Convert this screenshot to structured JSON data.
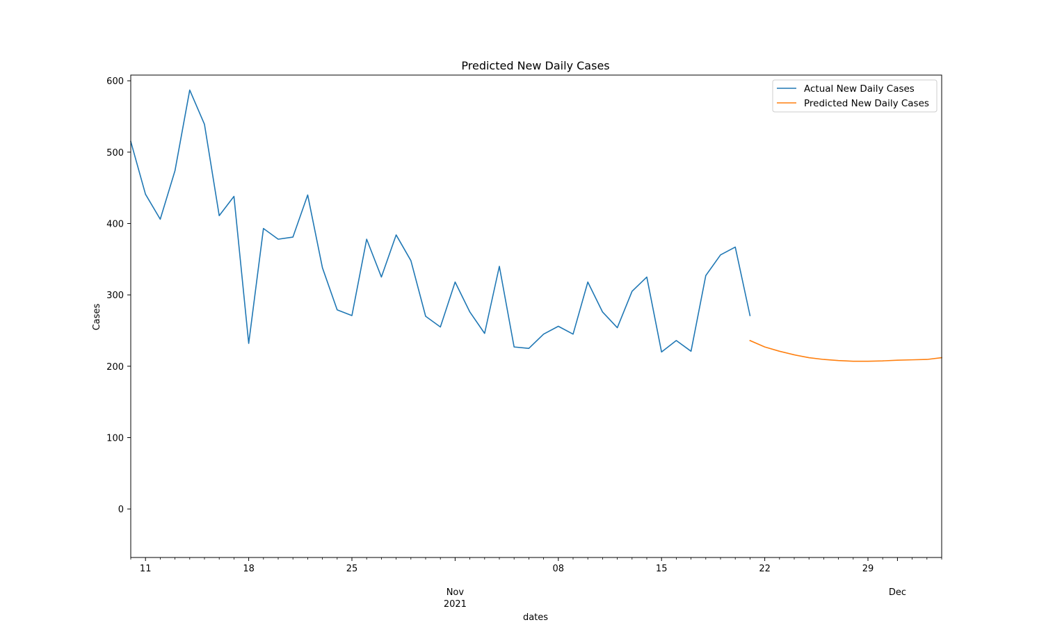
{
  "chart_data": {
    "type": "line",
    "title": "Predicted New Daily Cases",
    "xlabel": "dates",
    "ylabel": "Cases",
    "ylim": [
      -68,
      608
    ],
    "xlim": [
      "2021-10-10",
      "2021-12-04"
    ],
    "grid": false,
    "legend_position": "top-right",
    "y_ticks": [
      "0",
      "100",
      "200",
      "300",
      "400",
      "500",
      "600"
    ],
    "x_ticks": [
      {
        "date": "2021-10-11",
        "label": "11"
      },
      {
        "date": "2021-10-18",
        "label": "18"
      },
      {
        "date": "2021-10-25",
        "label": "25"
      },
      {
        "date": "2021-11-01",
        "label": "Nov\n2021"
      },
      {
        "date": "2021-11-08",
        "label": "08"
      },
      {
        "date": "2021-11-15",
        "label": "15"
      },
      {
        "date": "2021-11-22",
        "label": "22"
      },
      {
        "date": "2021-11-29",
        "label": "29"
      },
      {
        "date": "2021-12-01",
        "label": "Dec"
      }
    ],
    "series": [
      {
        "name": "Actual New Daily Cases",
        "color": "#1f77b4",
        "points": [
          [
            "2021-10-10",
            515
          ],
          [
            "2021-10-11",
            441
          ],
          [
            "2021-10-12",
            406
          ],
          [
            "2021-10-13",
            474
          ],
          [
            "2021-10-14",
            587
          ],
          [
            "2021-10-15",
            539
          ],
          [
            "2021-10-16",
            411
          ],
          [
            "2021-10-17",
            438
          ],
          [
            "2021-10-18",
            232
          ],
          [
            "2021-10-19",
            393
          ],
          [
            "2021-10-20",
            378
          ],
          [
            "2021-10-21",
            381
          ],
          [
            "2021-10-22",
            440
          ],
          [
            "2021-10-23",
            338
          ],
          [
            "2021-10-24",
            279
          ],
          [
            "2021-10-25",
            271
          ],
          [
            "2021-10-26",
            378
          ],
          [
            "2021-10-27",
            325
          ],
          [
            "2021-10-28",
            384
          ],
          [
            "2021-10-29",
            348
          ],
          [
            "2021-10-30",
            270
          ],
          [
            "2021-10-31",
            255
          ],
          [
            "2021-11-01",
            318
          ],
          [
            "2021-11-02",
            276
          ],
          [
            "2021-11-03",
            246
          ],
          [
            "2021-11-04",
            340
          ],
          [
            "2021-11-05",
            227
          ],
          [
            "2021-11-06",
            225
          ],
          [
            "2021-11-07",
            245
          ],
          [
            "2021-11-08",
            256
          ],
          [
            "2021-11-09",
            245
          ],
          [
            "2021-11-10",
            318
          ],
          [
            "2021-11-11",
            276
          ],
          [
            "2021-11-12",
            254
          ],
          [
            "2021-11-13",
            305
          ],
          [
            "2021-11-14",
            325
          ],
          [
            "2021-11-15",
            220
          ],
          [
            "2021-11-16",
            236
          ],
          [
            "2021-11-17",
            221
          ],
          [
            "2021-11-18",
            327
          ],
          [
            "2021-11-19",
            356
          ],
          [
            "2021-11-20",
            367
          ],
          [
            "2021-11-21",
            271
          ]
        ]
      },
      {
        "name": "Predicted New Daily Cases",
        "color": "#ff7f0e",
        "points": [
          [
            "2021-11-21",
            236
          ],
          [
            "2021-11-22",
            227
          ],
          [
            "2021-11-23",
            221
          ],
          [
            "2021-11-24",
            216
          ],
          [
            "2021-11-25",
            212
          ],
          [
            "2021-11-26",
            209.5
          ],
          [
            "2021-11-27",
            208
          ],
          [
            "2021-11-28",
            207
          ],
          [
            "2021-11-29",
            207
          ],
          [
            "2021-11-30",
            207.5
          ],
          [
            "2021-12-01",
            208.5
          ],
          [
            "2021-12-02",
            209
          ],
          [
            "2021-12-03",
            209.5
          ],
          [
            "2021-12-04",
            212
          ]
        ]
      }
    ]
  }
}
